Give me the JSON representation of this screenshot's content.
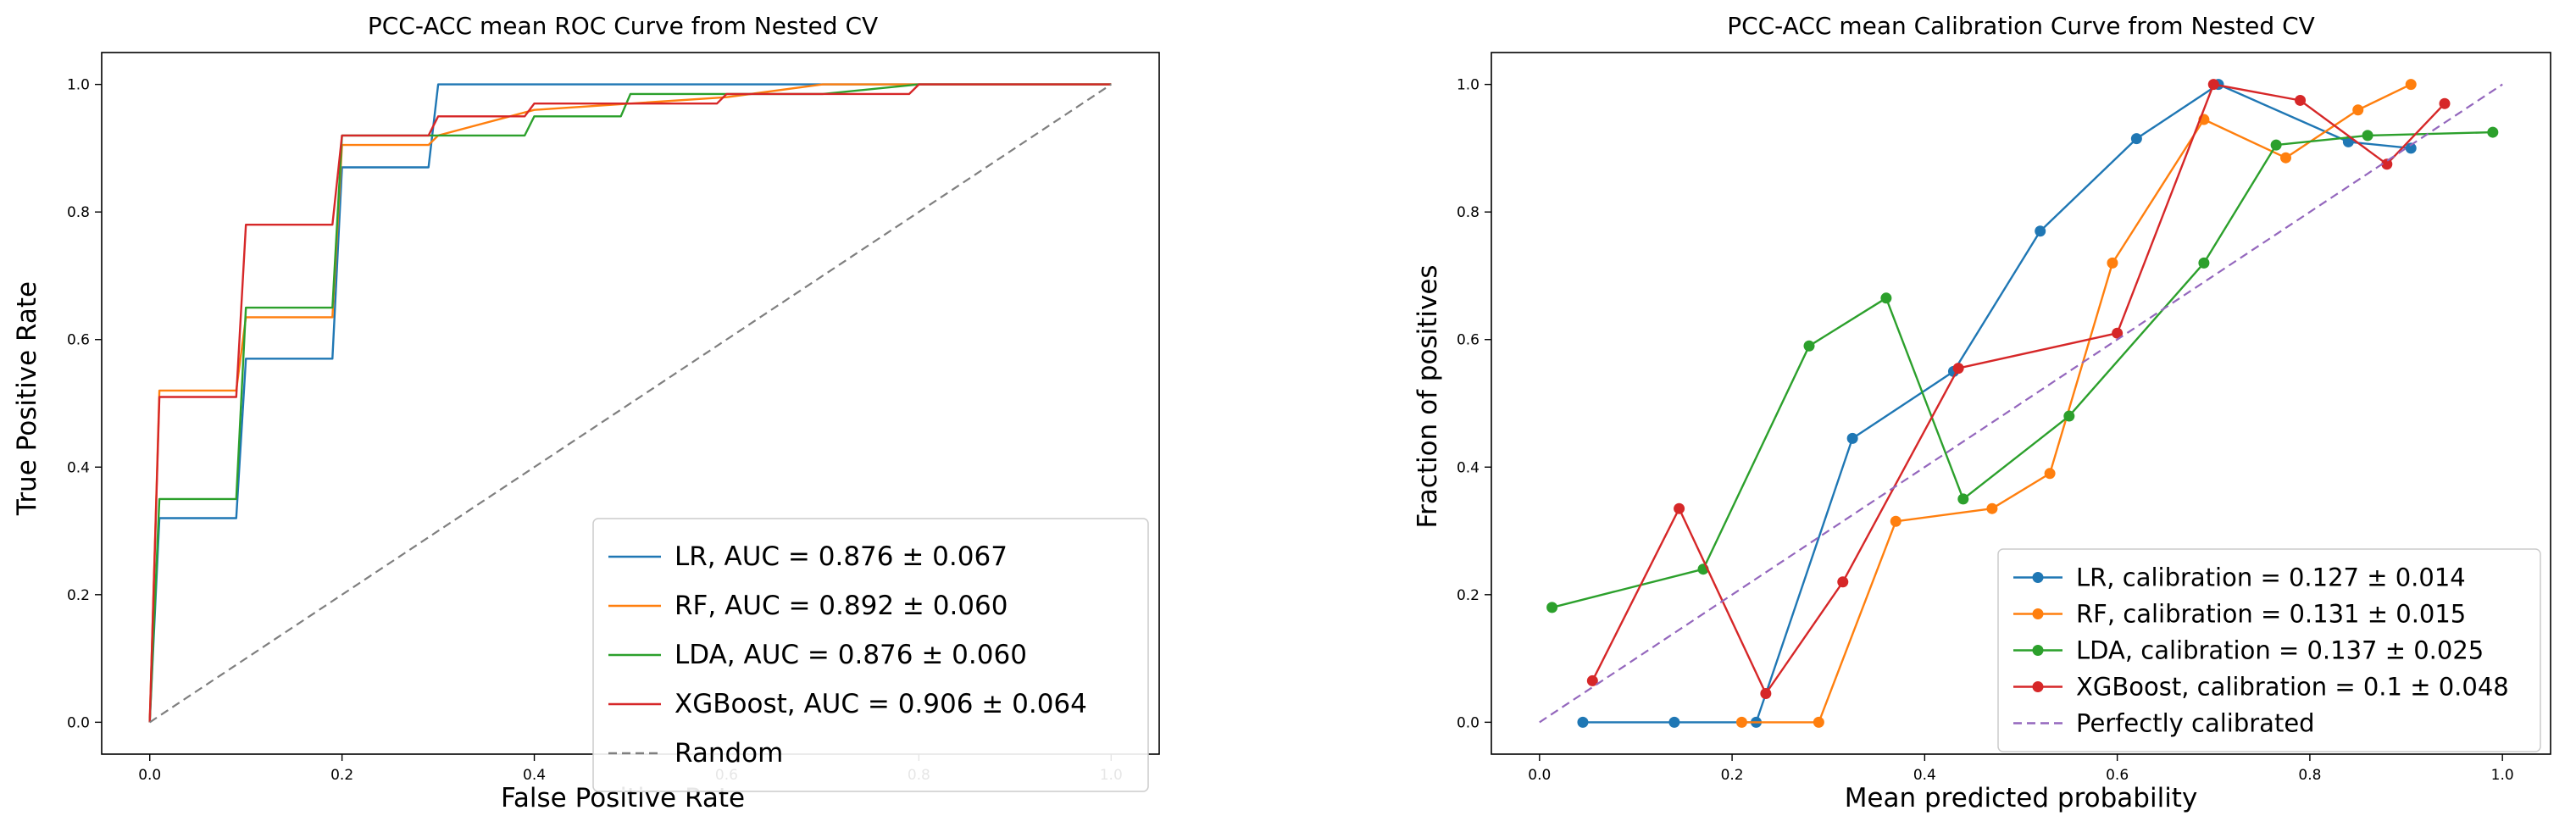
{
  "chart_data": [
    {
      "type": "line",
      "title": "PCC-ACC mean ROC Curve from Nested CV",
      "xlabel": "False Positive Rate",
      "ylabel": "True Positive Rate",
      "xlim": [
        -0.05,
        1.05
      ],
      "ylim": [
        -0.05,
        1.05
      ],
      "xticks": [
        "0.0",
        "0.2",
        "0.4",
        "0.6",
        "0.8",
        "1.0"
      ],
      "yticks": [
        "0.0",
        "0.2",
        "0.4",
        "0.6",
        "0.8",
        "1.0"
      ],
      "legend_position": "lower-right",
      "series": [
        {
          "name": "LR, AUC = 0.876 ± 0.067",
          "color": "#1f77b4",
          "x": [
            0,
            0.01,
            0.09,
            0.1,
            0.19,
            0.2,
            0.29,
            0.3,
            1.0
          ],
          "y": [
            0,
            0.32,
            0.32,
            0.57,
            0.57,
            0.87,
            0.87,
            1.0,
            1.0
          ]
        },
        {
          "name": "RF, AUC = 0.892 ± 0.060",
          "color": "#ff7f0e",
          "x": [
            0,
            0.01,
            0.09,
            0.1,
            0.19,
            0.2,
            0.29,
            0.3,
            0.4,
            0.6,
            0.7,
            1.0
          ],
          "y": [
            0,
            0.52,
            0.52,
            0.635,
            0.635,
            0.905,
            0.905,
            0.92,
            0.96,
            0.98,
            1.0,
            1.0
          ]
        },
        {
          "name": "LDA, AUC = 0.876 ± 0.060",
          "color": "#2ca02c",
          "x": [
            0,
            0.01,
            0.09,
            0.1,
            0.19,
            0.2,
            0.29,
            0.3,
            0.39,
            0.4,
            0.49,
            0.5,
            0.7,
            0.8,
            1.0
          ],
          "y": [
            0,
            0.35,
            0.35,
            0.65,
            0.65,
            0.92,
            0.92,
            0.92,
            0.92,
            0.95,
            0.95,
            0.985,
            0.985,
            1.0,
            1.0
          ]
        },
        {
          "name": "XGBoost, AUC = 0.906 ± 0.064",
          "color": "#d62728",
          "x": [
            0,
            0.01,
            0.09,
            0.1,
            0.19,
            0.2,
            0.29,
            0.3,
            0.39,
            0.4,
            0.59,
            0.6,
            0.79,
            0.8,
            1.0
          ],
          "y": [
            0,
            0.51,
            0.51,
            0.78,
            0.78,
            0.92,
            0.92,
            0.95,
            0.95,
            0.97,
            0.97,
            0.985,
            0.985,
            1.0,
            1.0
          ]
        },
        {
          "name": "Random",
          "color": "#7f7f7f",
          "dashed": true,
          "x": [
            0,
            1
          ],
          "y": [
            0,
            1
          ]
        }
      ]
    },
    {
      "type": "line",
      "title": "PCC-ACC mean Calibration Curve from Nested CV",
      "xlabel": "Mean predicted probability",
      "ylabel": "Fraction of positives",
      "xlim": [
        -0.05,
        1.05
      ],
      "ylim": [
        -0.05,
        1.05
      ],
      "xticks": [
        "0.0",
        "0.2",
        "0.4",
        "0.6",
        "0.8",
        "1.0"
      ],
      "yticks": [
        "0.0",
        "0.2",
        "0.4",
        "0.6",
        "0.8",
        "1.0"
      ],
      "legend_position": "lower-right",
      "series": [
        {
          "name": "LR, calibration = 0.127 ± 0.014",
          "color": "#1f77b4",
          "markers": true,
          "x": [
            0.045,
            0.14,
            0.225,
            0.325,
            0.43,
            0.52,
            0.62,
            0.705,
            0.84,
            0.905
          ],
          "y": [
            0.0,
            0.0,
            0.0,
            0.445,
            0.55,
            0.77,
            0.915,
            1.0,
            0.91,
            0.9
          ]
        },
        {
          "name": "RF, calibration = 0.131 ± 0.015",
          "color": "#ff7f0e",
          "markers": true,
          "x": [
            0.21,
            0.29,
            0.37,
            0.47,
            0.53,
            0.595,
            0.69,
            0.775,
            0.85,
            0.905
          ],
          "y": [
            0.0,
            0.0,
            0.315,
            0.335,
            0.39,
            0.72,
            0.945,
            0.885,
            0.96,
            1.0
          ]
        },
        {
          "name": "LDA, calibration = 0.137 ± 0.025",
          "color": "#2ca02c",
          "markers": true,
          "x": [
            0.013,
            0.17,
            0.28,
            0.36,
            0.44,
            0.55,
            0.69,
            0.765,
            0.86,
            0.99
          ],
          "y": [
            0.18,
            0.24,
            0.59,
            0.665,
            0.35,
            0.48,
            0.72,
            0.905,
            0.92,
            0.925
          ]
        },
        {
          "name": "XGBoost, calibration = 0.1 ± 0.048",
          "color": "#d62728",
          "markers": true,
          "x": [
            0.055,
            0.145,
            0.235,
            0.315,
            0.435,
            0.6,
            0.7,
            0.79,
            0.88,
            0.94
          ],
          "y": [
            0.065,
            0.335,
            0.045,
            0.22,
            0.555,
            0.61,
            1.0,
            0.975,
            0.875,
            0.97
          ]
        },
        {
          "name": "Perfectly calibrated",
          "color": "#9467bd",
          "dashed": true,
          "x": [
            0,
            1
          ],
          "y": [
            0,
            1
          ]
        }
      ]
    }
  ]
}
